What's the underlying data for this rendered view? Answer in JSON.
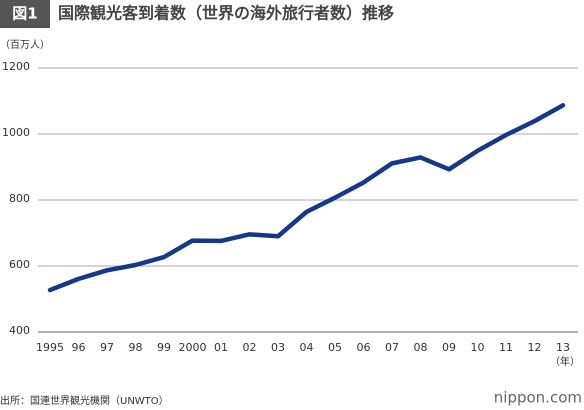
{
  "chart_data": {
    "type": "line",
    "badge": "図1",
    "title": "国際観光客到着数（世界の海外旅行者数）推移",
    "y_unit": "（百万人）",
    "x_unit": "（年）",
    "source": "出所：国連世界観光機関（UNWTO）",
    "logo": "nippon.com",
    "categories": [
      "1995",
      "96",
      "97",
      "98",
      "99",
      "2000",
      "01",
      "02",
      "03",
      "04",
      "05",
      "06",
      "07",
      "08",
      "09",
      "10",
      "11",
      "12",
      "13"
    ],
    "values": [
      527,
      561,
      587,
      603,
      627,
      677,
      676,
      696,
      690,
      764,
      807,
      853,
      911,
      929,
      893,
      949,
      997,
      1039,
      1087
    ],
    "color": "#16388a",
    "ylim": [
      400,
      1200
    ],
    "yticks": [
      400,
      600,
      800,
      1000,
      1200
    ],
    "grid": true
  }
}
